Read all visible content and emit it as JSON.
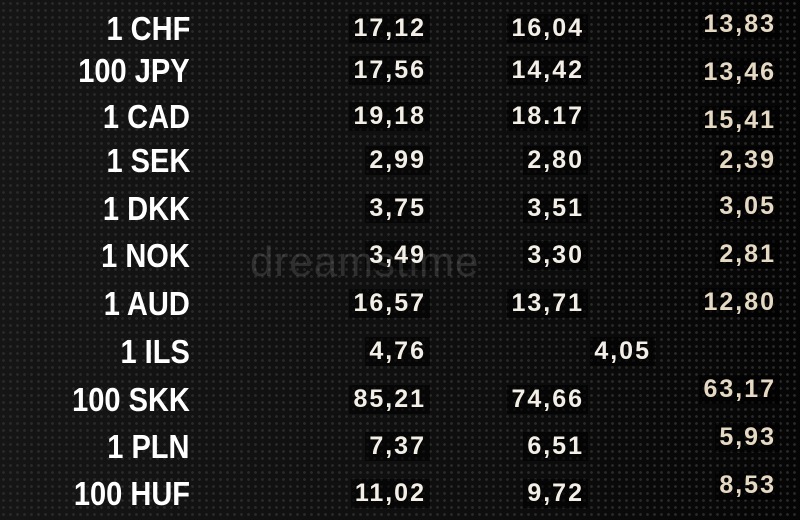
{
  "rates": [
    {
      "currency": "1 CHF",
      "v1": "17,12",
      "v2": "16,04",
      "v3": "13,83"
    },
    {
      "currency": "100 JPY",
      "v1": "17,56",
      "v2": "14,42",
      "v3": "13,46"
    },
    {
      "currency": "1 CAD",
      "v1": "19,18",
      "v2": "18.17",
      "v3": "15,41"
    },
    {
      "currency": "1 SEK",
      "v1": "2,99",
      "v2": "2,80",
      "v3": "2,39"
    },
    {
      "currency": "1 DKK",
      "v1": "3,75",
      "v2": "3,51",
      "v3": "3,05"
    },
    {
      "currency": "1 NOK",
      "v1": "3,49",
      "v2": "3,30",
      "v3": "2,81"
    },
    {
      "currency": "1 AUD",
      "v1": "16,57",
      "v2": "13,71",
      "v3": "12,80"
    },
    {
      "currency": "1 ILS",
      "v1": "4,76",
      "v2": "4,05",
      "v3": ""
    },
    {
      "currency": "100 SKK",
      "v1": "85,21",
      "v2": "74,66",
      "v3": "63,17"
    },
    {
      "currency": "1 PLN",
      "v1": "7,37",
      "v2": "6,51",
      "v3": "5,93"
    },
    {
      "currency": "100 HUF",
      "v1": "11,02",
      "v2": "9,72",
      "v3": "8,53"
    }
  ],
  "watermark": "dreamstime"
}
